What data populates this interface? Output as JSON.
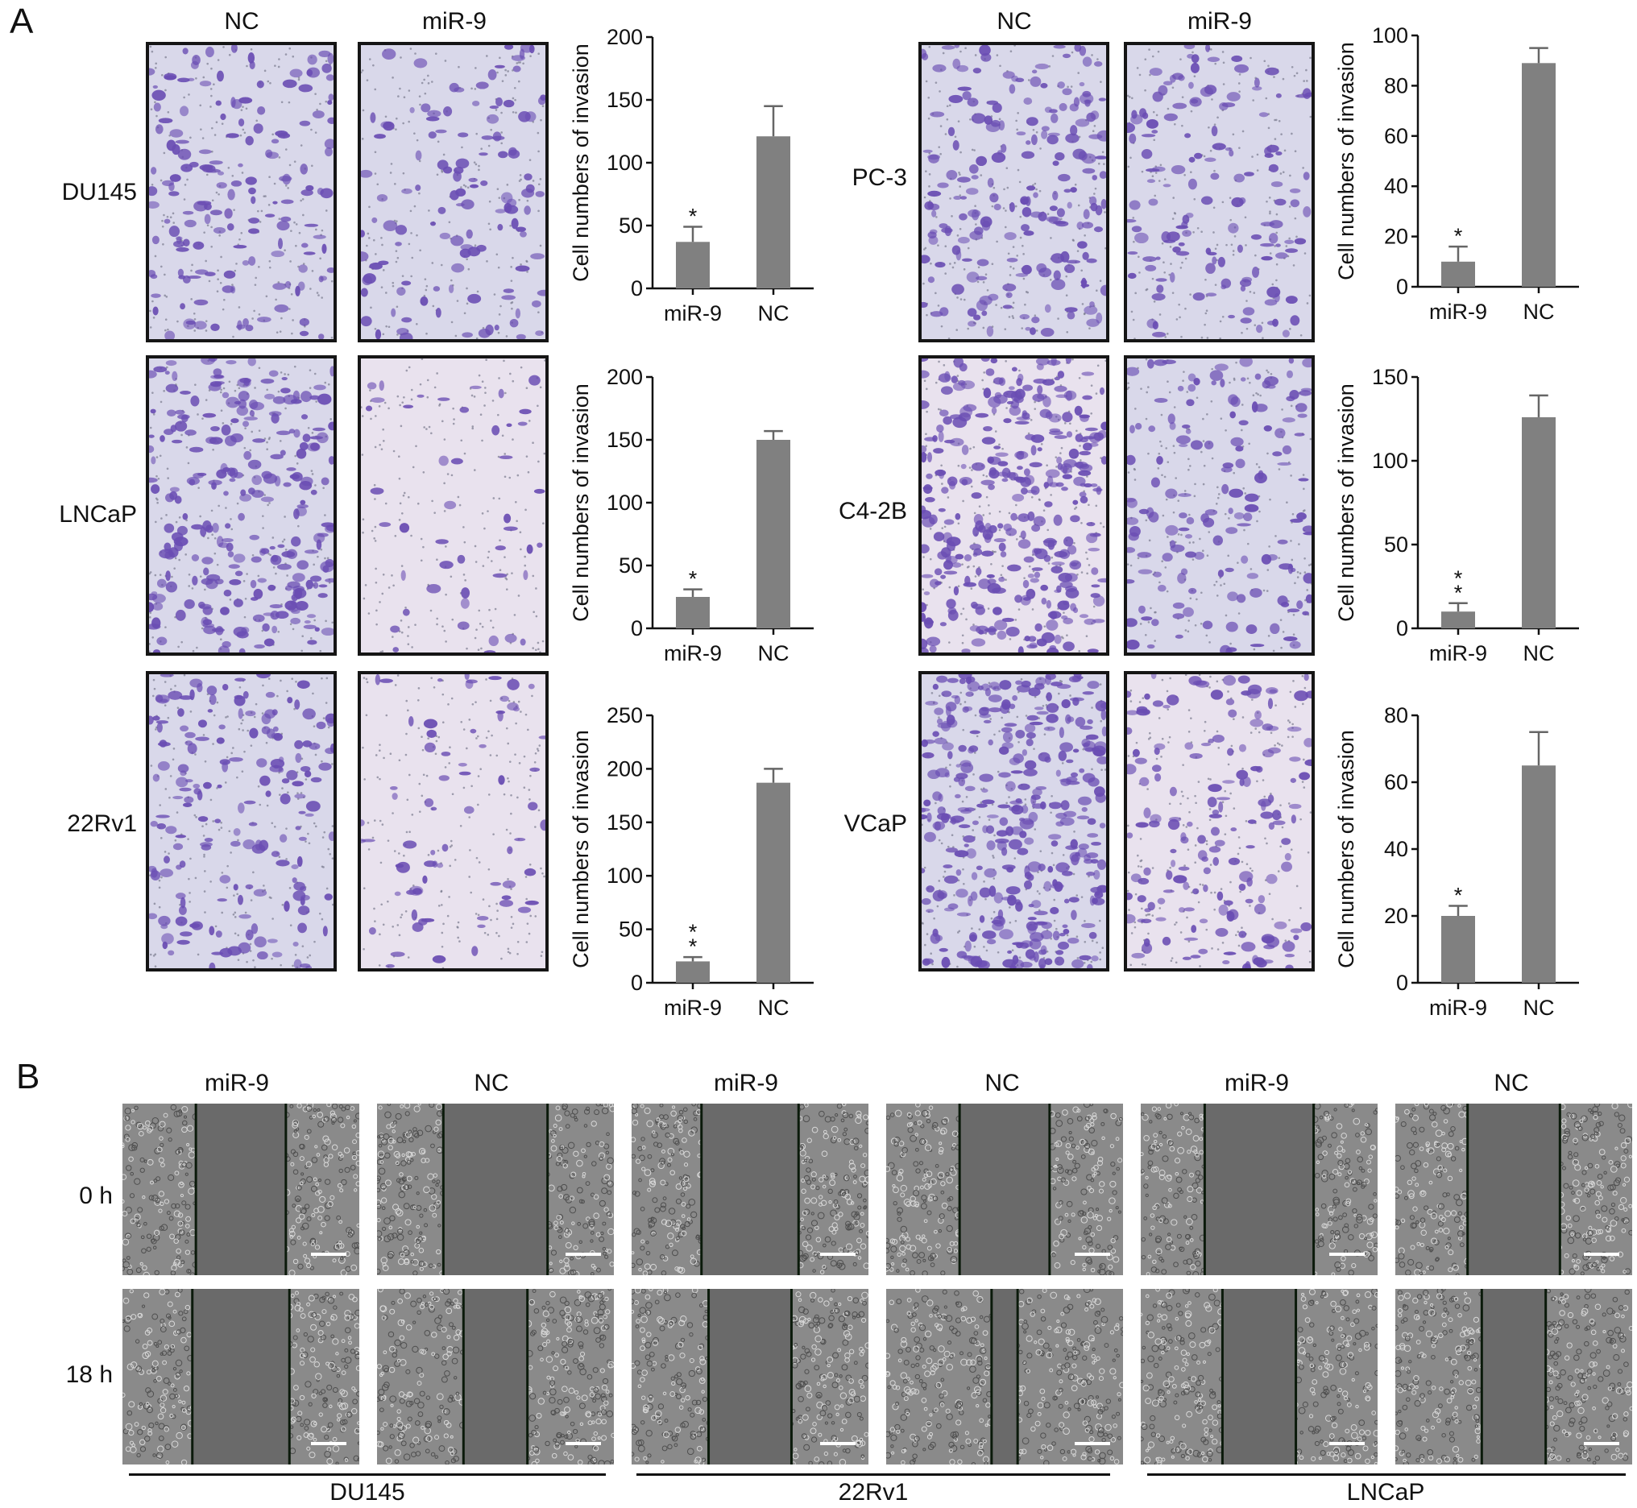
{
  "panels": {
    "a_label": "A",
    "b_label": "B"
  },
  "invasion": {
    "col_labels_left": [
      "NC",
      "miR-9"
    ],
    "col_labels_right": [
      "NC",
      "miR-9"
    ],
    "rows_left": [
      "DU145",
      "LNCaP",
      "22Rv1"
    ],
    "rows_right": [
      "PC-3",
      "C4-2B",
      "VCaP"
    ],
    "image_tints": {
      "bg_light": "#d9d8ea",
      "bg_pink": "#e9e2ee",
      "cell": "#6a4db3"
    }
  },
  "chart_data": [
    {
      "type": "bar",
      "title": "",
      "categories": [
        "miR-9",
        "NC"
      ],
      "values": [
        37,
        121
      ],
      "errors": [
        12,
        24
      ],
      "ylim": [
        0,
        200
      ],
      "yticks": [
        0,
        50,
        100,
        150,
        200
      ],
      "ylabel": "Cell numbers of invasion",
      "xlabel": "",
      "significance": [
        "*",
        ""
      ],
      "bar_color": "#808080"
    },
    {
      "type": "bar",
      "title": "",
      "categories": [
        "miR-9",
        "NC"
      ],
      "values": [
        25,
        150
      ],
      "errors": [
        6,
        7
      ],
      "ylim": [
        0,
        200
      ],
      "yticks": [
        0,
        50,
        100,
        150,
        200
      ],
      "ylabel": "Cell numbers of invasion",
      "xlabel": "",
      "significance": [
        "*",
        ""
      ],
      "bar_color": "#808080"
    },
    {
      "type": "bar",
      "title": "",
      "categories": [
        "miR-9",
        "NC"
      ],
      "values": [
        20,
        187
      ],
      "errors": [
        4,
        13
      ],
      "ylim": [
        0,
        250
      ],
      "yticks": [
        0,
        50,
        100,
        150,
        200,
        250
      ],
      "ylabel": "Cell numbers of invasion",
      "xlabel": "",
      "significance": [
        "**",
        ""
      ],
      "bar_color": "#808080"
    },
    {
      "type": "bar",
      "title": "",
      "categories": [
        "miR-9",
        "NC"
      ],
      "values": [
        10,
        89
      ],
      "errors": [
        6,
        6
      ],
      "ylim": [
        0,
        100
      ],
      "yticks": [
        0,
        20,
        40,
        60,
        80,
        100
      ],
      "ylabel": "Cell numbers of invasion",
      "xlabel": "",
      "significance": [
        "*",
        ""
      ],
      "bar_color": "#808080"
    },
    {
      "type": "bar",
      "title": "",
      "categories": [
        "miR-9",
        "NC"
      ],
      "values": [
        10,
        126
      ],
      "errors": [
        5,
        13
      ],
      "ylim": [
        0,
        150
      ],
      "yticks": [
        0,
        50,
        100,
        150
      ],
      "ylabel": "Cell numbers of invasion",
      "xlabel": "",
      "significance": [
        "**",
        ""
      ],
      "bar_color": "#808080"
    },
    {
      "type": "bar",
      "title": "",
      "categories": [
        "miR-9",
        "NC"
      ],
      "values": [
        20,
        65
      ],
      "errors": [
        3,
        10
      ],
      "ylim": [
        0,
        80
      ],
      "yticks": [
        0,
        20,
        40,
        60,
        80
      ],
      "ylabel": "Cell numbers of invasion",
      "xlabel": "",
      "significance": [
        "*",
        ""
      ],
      "bar_color": "#808080"
    }
  ],
  "migration": {
    "col_labels": [
      "miR-9",
      "NC",
      "miR-9",
      "NC",
      "miR-9",
      "NC"
    ],
    "time_labels": [
      "0 h",
      "18 h"
    ],
    "cell_lines": [
      "DU145",
      "22Rv1",
      "LNCaP"
    ],
    "gap_fraction_0h": [
      0.38,
      0.44,
      0.41,
      0.38,
      0.46,
      0.39
    ],
    "gap_fraction_18h": [
      0.41,
      0.27,
      0.35,
      0.11,
      0.31,
      0.27
    ]
  }
}
